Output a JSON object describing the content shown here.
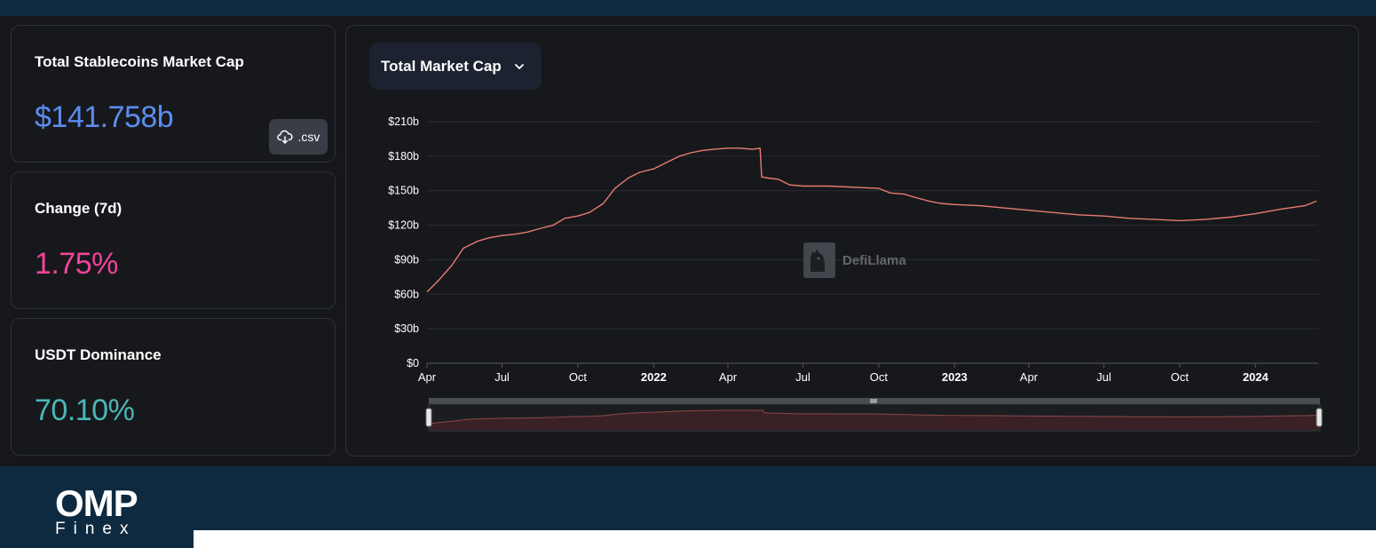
{
  "stats": {
    "market_cap": {
      "title": "Total Stablecoins Market Cap",
      "value": "$141.758b",
      "color": "#5b8def"
    },
    "change": {
      "title": "Change (7d)",
      "value": "1.75%",
      "color": "#f0449a"
    },
    "dominance": {
      "title": "USDT Dominance",
      "value": "70.10%",
      "color": "#4bb6b8"
    }
  },
  "csv_button": {
    "label": ".csv",
    "icon": "cloud-download-icon"
  },
  "chart_selector": {
    "label": "Total Market Cap",
    "icon": "chevron-down-icon"
  },
  "watermark": {
    "text": "DefiLlama",
    "icon": "llama-icon"
  },
  "brand": {
    "main": "OMP",
    "sub": "Finex"
  },
  "colors": {
    "line": "#e87c72",
    "area": "#3a2125",
    "positive": "#f0449a"
  },
  "chart_data": {
    "type": "line",
    "title": "",
    "xlabel": "",
    "ylabel": "",
    "ylim": [
      0,
      210
    ],
    "y_ticks": [
      "$0",
      "$30b",
      "$60b",
      "$90b",
      "$120b",
      "$150b",
      "$180b",
      "$210b"
    ],
    "x_ticks": [
      {
        "label": "Apr",
        "date": "2021-04-01",
        "bold": false
      },
      {
        "label": "Jul",
        "date": "2021-07-01",
        "bold": false
      },
      {
        "label": "Oct",
        "date": "2021-10-01",
        "bold": false
      },
      {
        "label": "2022",
        "date": "2022-01-01",
        "bold": true
      },
      {
        "label": "Apr",
        "date": "2022-04-01",
        "bold": false
      },
      {
        "label": "Jul",
        "date": "2022-07-01",
        "bold": false
      },
      {
        "label": "Oct",
        "date": "2022-10-01",
        "bold": false
      },
      {
        "label": "2023",
        "date": "2023-01-01",
        "bold": true
      },
      {
        "label": "Apr",
        "date": "2023-04-01",
        "bold": false
      },
      {
        "label": "Jul",
        "date": "2023-07-01",
        "bold": false
      },
      {
        "label": "Oct",
        "date": "2023-10-01",
        "bold": false
      },
      {
        "label": "2024",
        "date": "2024-01-01",
        "bold": true
      }
    ],
    "grid": true,
    "series": [
      {
        "name": "Total Market Cap",
        "color": "#e87c72",
        "points": [
          [
            "2021-04-01",
            62
          ],
          [
            "2021-04-15",
            72
          ],
          [
            "2021-05-01",
            85
          ],
          [
            "2021-05-15",
            100
          ],
          [
            "2021-06-01",
            106
          ],
          [
            "2021-06-15",
            109
          ],
          [
            "2021-07-01",
            111
          ],
          [
            "2021-07-15",
            112
          ],
          [
            "2021-08-01",
            114
          ],
          [
            "2021-08-15",
            117
          ],
          [
            "2021-09-01",
            120
          ],
          [
            "2021-09-15",
            126
          ],
          [
            "2021-10-01",
            128
          ],
          [
            "2021-10-15",
            131
          ],
          [
            "2021-11-01",
            139
          ],
          [
            "2021-11-15",
            152
          ],
          [
            "2021-12-01",
            161
          ],
          [
            "2021-12-15",
            166
          ],
          [
            "2022-01-01",
            169
          ],
          [
            "2022-01-15",
            174
          ],
          [
            "2022-02-01",
            180
          ],
          [
            "2022-02-15",
            183
          ],
          [
            "2022-03-01",
            185
          ],
          [
            "2022-03-15",
            186
          ],
          [
            "2022-04-01",
            187
          ],
          [
            "2022-04-15",
            187
          ],
          [
            "2022-05-01",
            186
          ],
          [
            "2022-05-10",
            187
          ],
          [
            "2022-05-12",
            162
          ],
          [
            "2022-05-20",
            161
          ],
          [
            "2022-06-01",
            160
          ],
          [
            "2022-06-15",
            155
          ],
          [
            "2022-07-01",
            154
          ],
          [
            "2022-08-01",
            154
          ],
          [
            "2022-09-01",
            153
          ],
          [
            "2022-10-01",
            152
          ],
          [
            "2022-10-15",
            148
          ],
          [
            "2022-11-01",
            147
          ],
          [
            "2022-11-15",
            144
          ],
          [
            "2022-12-01",
            141
          ],
          [
            "2022-12-15",
            139
          ],
          [
            "2023-01-01",
            138
          ],
          [
            "2023-02-01",
            137
          ],
          [
            "2023-03-01",
            135
          ],
          [
            "2023-04-01",
            133
          ],
          [
            "2023-05-01",
            131
          ],
          [
            "2023-06-01",
            129
          ],
          [
            "2023-07-01",
            128
          ],
          [
            "2023-08-01",
            126
          ],
          [
            "2023-09-01",
            125
          ],
          [
            "2023-10-01",
            124
          ],
          [
            "2023-11-01",
            125
          ],
          [
            "2023-12-01",
            127
          ],
          [
            "2024-01-01",
            130
          ],
          [
            "2024-02-01",
            134
          ],
          [
            "2024-03-01",
            137
          ],
          [
            "2024-03-15",
            141
          ]
        ]
      }
    ]
  }
}
